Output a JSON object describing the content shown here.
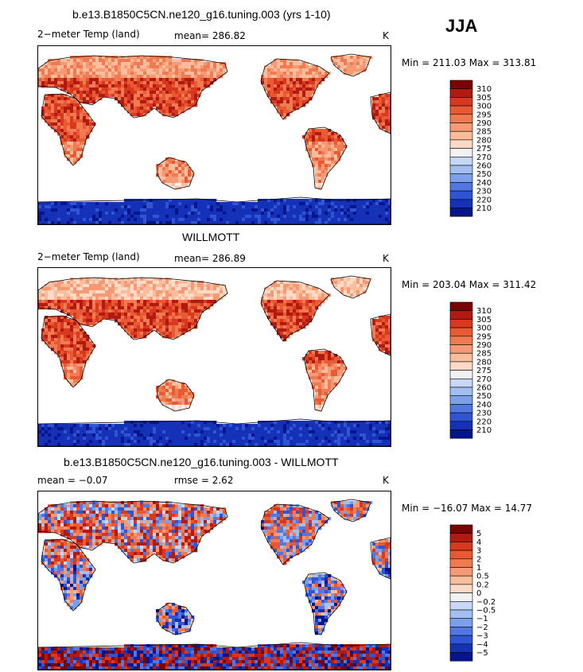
{
  "season": "JJA",
  "panels": [
    {
      "title": "b.e13.B1850C5CN.ne120_g16.tuning.003 (yrs 1-10)",
      "left_text": "2−meter Temp (land)",
      "center_text": "mean=  286.82",
      "units": "K",
      "minmax": "Min = 211.03  Max = 313.81",
      "scheme": "model"
    },
    {
      "title": "WILLMOTT",
      "left_text": "2−meter Temp (land)",
      "center_text": "mean=  286.89",
      "units": "K",
      "minmax": "Min = 203.04  Max = 311.42",
      "scheme": "obs"
    },
    {
      "title": "b.e13.B1850C5CN.ne120_g16.tuning.003 - WILLMOTT",
      "left_text": "mean =   −0.07",
      "center_text": "rmse =     2.62",
      "units": "K",
      "minmax": "Min = −16.07  Max =  14.77",
      "scheme": "diff"
    }
  ],
  "colorbars": {
    "temp": {
      "labels": [
        "310",
        "305",
        "300",
        "295",
        "290",
        "285",
        "280",
        "275",
        "270",
        "260",
        "250",
        "240",
        "230",
        "220",
        "210"
      ],
      "colors": [
        "#7a0403",
        "#b01a10",
        "#d8381e",
        "#e85a33",
        "#f07a52",
        "#f59a74",
        "#f9bd9c",
        "#fcdac6",
        "#f2f2f2",
        "#c6d8f5",
        "#a3bff1",
        "#7c9fe9",
        "#5277e0",
        "#2f55d3",
        "#1431b8",
        "#05158c"
      ]
    },
    "diff": {
      "labels": [
        "5",
        "4",
        "3",
        "2",
        "1",
        "0.5",
        "0.2",
        "0",
        "−0.2",
        "−0.5",
        "−1",
        "−2",
        "−3",
        "−4",
        "−5"
      ],
      "colors": [
        "#7a0403",
        "#b01a10",
        "#d8381e",
        "#e85a33",
        "#f07a52",
        "#f59a74",
        "#f9bd9c",
        "#fcdac6",
        "#f2f2f2",
        "#c6d8f5",
        "#a3bff1",
        "#7c9fe9",
        "#5277e0",
        "#2f55d3",
        "#1431b8",
        "#05158c"
      ]
    }
  }
}
